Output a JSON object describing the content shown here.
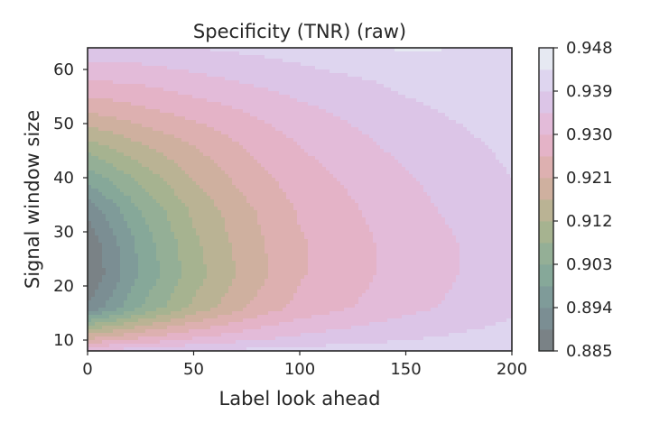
{
  "chart_data": {
    "type": "contour",
    "title": "Specificity (TNR) (raw)",
    "xlabel": "Label look ahead",
    "ylabel": "Signal window size",
    "xlim": [
      0,
      200
    ],
    "ylim": [
      8,
      64
    ],
    "x_ticks": [
      "0",
      "50",
      "100",
      "150",
      "200"
    ],
    "y_ticks": [
      "10",
      "20",
      "30",
      "40",
      "50",
      "60"
    ],
    "x_tick_values": [
      0,
      50,
      100,
      150,
      200
    ],
    "y_tick_values": [
      10,
      20,
      30,
      40,
      50,
      60
    ],
    "grid": false,
    "colormap": "cubehelix",
    "colorbar": {
      "range": [
        0.885,
        0.948
      ],
      "tick_labels": [
        "0.948",
        "0.939",
        "0.930",
        "0.921",
        "0.912",
        "0.903",
        "0.894",
        "0.885"
      ],
      "tick_values": [
        0.948,
        0.939,
        0.93,
        0.921,
        0.912,
        0.903,
        0.894,
        0.885
      ]
    },
    "x": [
      0,
      25,
      50,
      75,
      100,
      150,
      200
    ],
    "y": [
      8,
      10,
      16,
      22,
      28,
      34,
      40,
      46,
      52,
      58,
      64
    ],
    "z": [
      [
        0.935,
        0.937,
        0.939,
        0.94,
        0.941,
        0.942,
        0.943
      ],
      [
        0.922,
        0.927,
        0.931,
        0.934,
        0.936,
        0.939,
        0.941
      ],
      [
        0.89,
        0.903,
        0.913,
        0.921,
        0.927,
        0.933,
        0.938
      ],
      [
        0.885,
        0.899,
        0.91,
        0.918,
        0.925,
        0.932,
        0.937
      ],
      [
        0.886,
        0.9,
        0.911,
        0.919,
        0.925,
        0.932,
        0.937
      ],
      [
        0.891,
        0.903,
        0.913,
        0.92,
        0.926,
        0.933,
        0.938
      ],
      [
        0.9,
        0.909,
        0.917,
        0.923,
        0.928,
        0.934,
        0.939
      ],
      [
        0.91,
        0.916,
        0.921,
        0.926,
        0.93,
        0.936,
        0.94
      ],
      [
        0.921,
        0.924,
        0.927,
        0.93,
        0.933,
        0.938,
        0.941
      ],
      [
        0.93,
        0.931,
        0.933,
        0.935,
        0.937,
        0.94,
        0.942
      ],
      [
        0.938,
        0.938,
        0.939,
        0.94,
        0.941,
        0.944,
        0.943
      ]
    ]
  }
}
